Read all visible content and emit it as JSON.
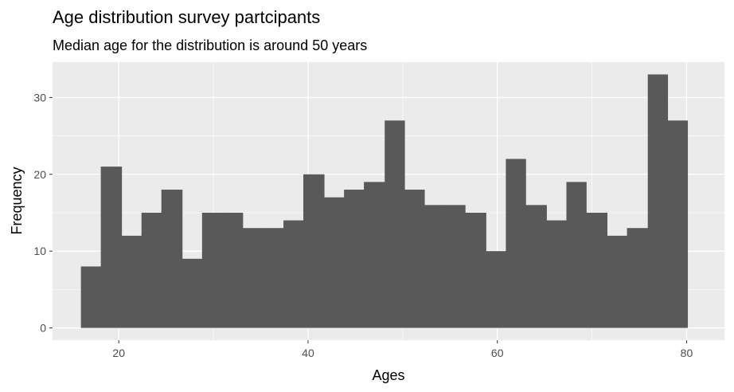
{
  "chart_data": {
    "type": "bar",
    "title": "Age distribution survey partcipants",
    "subtitle": "Median age for the distribution is around 50 years",
    "xlabel": "Ages",
    "ylabel": "Frequency",
    "xlim": [
      13,
      84
    ],
    "ylim": [
      -1.6,
      34.6
    ],
    "x_ticks": [
      20,
      40,
      60,
      80
    ],
    "x_tick_labels": [
      "20",
      "40",
      "60",
      "80"
    ],
    "y_ticks": [
      0,
      10,
      20,
      30
    ],
    "y_tick_labels": [
      "0",
      "10",
      "20",
      "30"
    ],
    "grid": true,
    "legend": "none",
    "colors": {
      "bar": "#595959",
      "panel": "#ebebeb",
      "grid": "#ffffff"
    },
    "bins": [
      {
        "x0": 16.0,
        "x1": 18.1,
        "count": 8
      },
      {
        "x0": 18.1,
        "x1": 20.3,
        "count": 21
      },
      {
        "x0": 20.3,
        "x1": 22.4,
        "count": 12
      },
      {
        "x0": 22.4,
        "x1": 24.5,
        "count": 15
      },
      {
        "x0": 24.5,
        "x1": 26.7,
        "count": 18
      },
      {
        "x0": 26.7,
        "x1": 28.8,
        "count": 9
      },
      {
        "x0": 28.8,
        "x1": 31.0,
        "count": 15
      },
      {
        "x0": 31.0,
        "x1": 33.1,
        "count": 15
      },
      {
        "x0": 33.1,
        "x1": 35.2,
        "count": 13
      },
      {
        "x0": 35.2,
        "x1": 37.4,
        "count": 13
      },
      {
        "x0": 37.4,
        "x1": 39.5,
        "count": 14
      },
      {
        "x0": 39.5,
        "x1": 41.7,
        "count": 20
      },
      {
        "x0": 41.7,
        "x1": 43.8,
        "count": 17
      },
      {
        "x0": 43.8,
        "x1": 45.9,
        "count": 18
      },
      {
        "x0": 45.9,
        "x1": 48.1,
        "count": 19
      },
      {
        "x0": 48.1,
        "x1": 50.2,
        "count": 27
      },
      {
        "x0": 50.2,
        "x1": 52.3,
        "count": 18
      },
      {
        "x0": 52.3,
        "x1": 54.5,
        "count": 16
      },
      {
        "x0": 54.5,
        "x1": 56.6,
        "count": 16
      },
      {
        "x0": 56.6,
        "x1": 58.8,
        "count": 15
      },
      {
        "x0": 58.8,
        "x1": 60.9,
        "count": 10
      },
      {
        "x0": 60.9,
        "x1": 63.0,
        "count": 22
      },
      {
        "x0": 63.0,
        "x1": 65.2,
        "count": 16
      },
      {
        "x0": 65.2,
        "x1": 67.3,
        "count": 14
      },
      {
        "x0": 67.3,
        "x1": 69.4,
        "count": 19
      },
      {
        "x0": 69.4,
        "x1": 71.6,
        "count": 15
      },
      {
        "x0": 71.6,
        "x1": 73.7,
        "count": 12
      },
      {
        "x0": 73.7,
        "x1": 75.9,
        "count": 13
      },
      {
        "x0": 75.9,
        "x1": 78.0,
        "count": 33
      },
      {
        "x0": 78.0,
        "x1": 80.1,
        "count": 27
      }
    ]
  }
}
